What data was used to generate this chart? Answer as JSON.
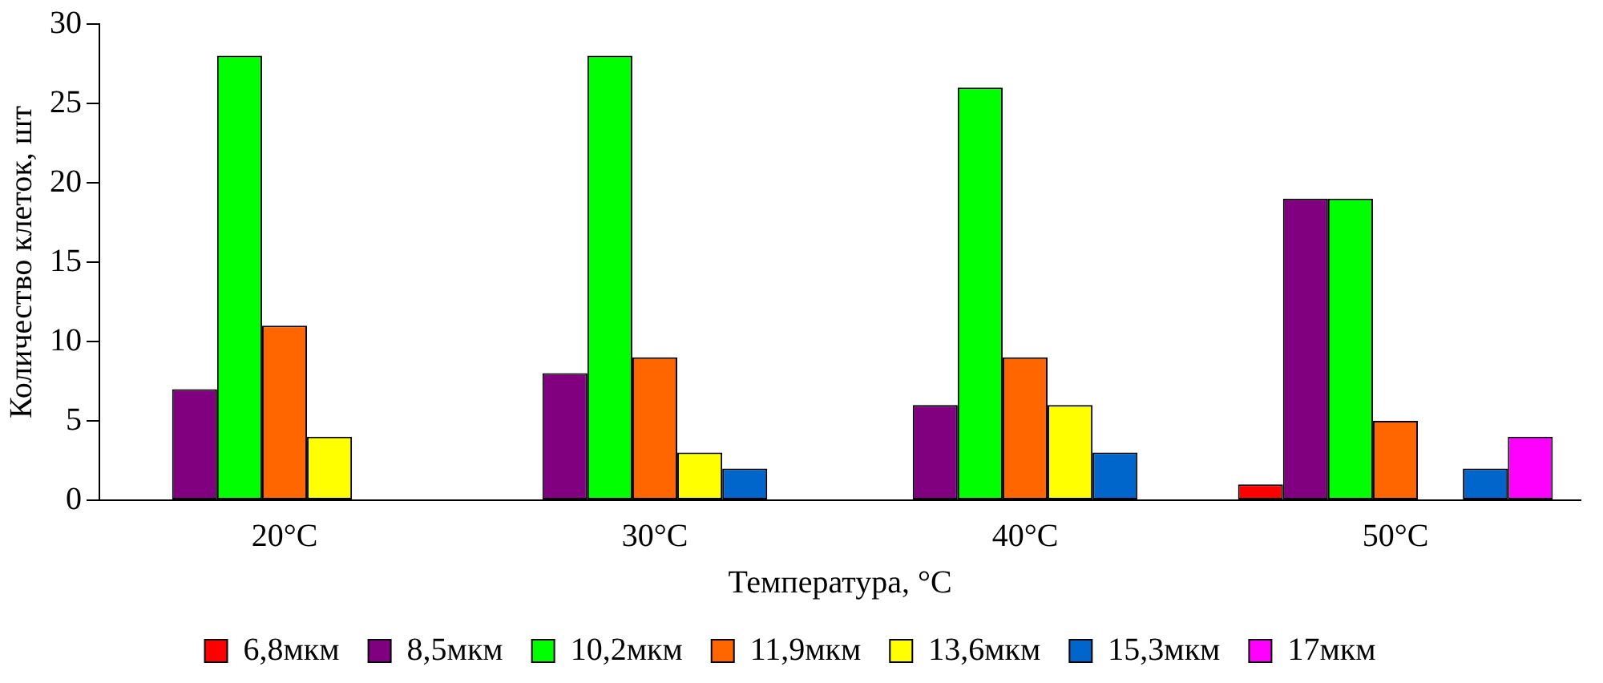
{
  "chart_data": {
    "type": "bar",
    "xlabel": "Температура, °C",
    "ylabel": "Количество клеток, шт",
    "categories": [
      "20°C",
      "30°C",
      "40°C",
      "50°C"
    ],
    "series": [
      {
        "name": "6,8мкм",
        "color": "#ff0000",
        "values": [
          0,
          0,
          0,
          1
        ]
      },
      {
        "name": "8,5мкм",
        "color": "#800080",
        "values": [
          7,
          8,
          6,
          19
        ]
      },
      {
        "name": "10,2мкм",
        "color": "#00ff00",
        "values": [
          28,
          28,
          26,
          19
        ]
      },
      {
        "name": "11,9мкм",
        "color": "#ff6600",
        "values": [
          11,
          9,
          9,
          5
        ]
      },
      {
        "name": "13,6мкм",
        "color": "#ffff00",
        "values": [
          4,
          3,
          6,
          0
        ]
      },
      {
        "name": "15,3мкм",
        "color": "#0066cc",
        "values": [
          0,
          2,
          3,
          2
        ]
      },
      {
        "name": "17мкм",
        "color": "#ff00ff",
        "values": [
          0,
          0,
          0,
          4
        ]
      }
    ],
    "ylim": [
      0,
      30
    ],
    "yticks": [
      0,
      5,
      10,
      15,
      20,
      25,
      30
    ],
    "grid": false,
    "legend": "bottom"
  }
}
